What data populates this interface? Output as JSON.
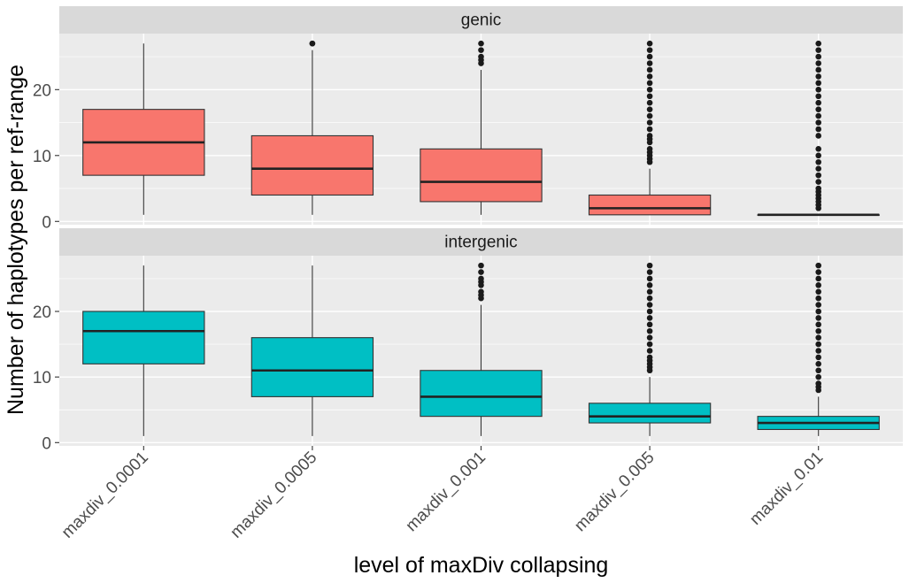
{
  "chart_data": {
    "type": "box",
    "xlabel": "level of maxDiv collapsing",
    "ylabel": "Number of haplotypes per ref-range",
    "categories": [
      "maxdiv_0.0001",
      "maxdiv_0.0005",
      "maxdiv_0.001",
      "maxdiv_0.005",
      "maxdiv_0.01"
    ],
    "y_ticks": [
      0,
      10,
      20
    ],
    "ylim": [
      -0.5,
      28.5
    ],
    "grid": true,
    "legend": "none",
    "facets": [
      {
        "label": "genic",
        "fill": "#F8766D",
        "boxes": [
          {
            "min": 1,
            "q1": 7,
            "median": 12,
            "q3": 17,
            "max": 27,
            "outliers": []
          },
          {
            "min": 1,
            "q1": 4,
            "median": 8,
            "q3": 13,
            "max": 26,
            "outliers": [
              27,
              27
            ]
          },
          {
            "min": 1,
            "q1": 3,
            "median": 6,
            "q3": 11,
            "max": 23,
            "outliers": [
              24,
              24.5,
              25,
              26,
              27
            ]
          },
          {
            "min": 1,
            "q1": 1,
            "median": 2,
            "q3": 4,
            "max": 8,
            "outliers": [
              9,
              9.5,
              10,
              10.5,
              11,
              12,
              12.5,
              13,
              14,
              15,
              16,
              17,
              18,
              19,
              20,
              21,
              22,
              23,
              24,
              25,
              26,
              27
            ]
          },
          {
            "min": 1,
            "q1": 1,
            "median": 1,
            "q3": 1,
            "max": 1,
            "outliers": [
              2,
              2.5,
              3,
              3.5,
              4,
              4.5,
              5,
              6,
              7,
              8,
              9,
              10,
              11,
              13,
              14,
              15,
              16,
              17,
              18,
              19,
              20,
              21,
              22,
              23,
              24,
              25,
              26,
              27
            ]
          }
        ]
      },
      {
        "label": "intergenic",
        "fill": "#00BFC4",
        "boxes": [
          {
            "min": 1,
            "q1": 12,
            "median": 17,
            "q3": 20,
            "max": 27,
            "outliers": []
          },
          {
            "min": 1,
            "q1": 7,
            "median": 11,
            "q3": 16,
            "max": 27,
            "outliers": []
          },
          {
            "min": 1,
            "q1": 4,
            "median": 7,
            "q3": 11,
            "max": 21,
            "outliers": [
              22,
              22.5,
              23,
              24,
              24.5,
              25,
              26,
              27
            ]
          },
          {
            "min": 1,
            "q1": 3,
            "median": 4,
            "q3": 6,
            "max": 10,
            "outliers": [
              11,
              11.5,
              12,
              12.5,
              13,
              14,
              15,
              16,
              17,
              18,
              19,
              20,
              21,
              22,
              23,
              24,
              25,
              26,
              27
            ]
          },
          {
            "min": 1,
            "q1": 2,
            "median": 3,
            "q3": 4,
            "max": 7,
            "outliers": [
              8,
              8.5,
              9,
              10,
              11,
              12,
              13,
              14,
              15,
              16,
              17,
              18,
              19,
              20,
              21,
              22,
              23,
              24,
              25,
              26,
              27
            ]
          }
        ]
      }
    ]
  }
}
